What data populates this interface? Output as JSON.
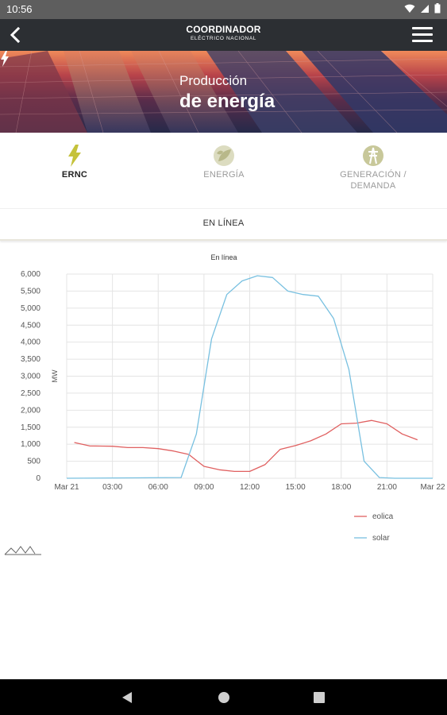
{
  "status_bar": {
    "time": "10:56",
    "icons": [
      "wifi-icon",
      "signal-icon",
      "battery-icon"
    ]
  },
  "app_bar": {
    "logo_main": "COORDINADOR",
    "logo_sub": "ELÉCTRICO NACIONAL"
  },
  "hero": {
    "line1": "Producción",
    "line2": "de energía"
  },
  "tabs": [
    {
      "label": "ERNC",
      "active": true,
      "color": "#c5c23a"
    },
    {
      "label": "ENERGÍA",
      "active": false,
      "color": "#c8c89a"
    },
    {
      "label": "GENERACIÓN /",
      "label2": "DEMANDA",
      "active": false,
      "color": "#c8c89a"
    }
  ],
  "subtab": {
    "label": "EN LÍNEA"
  },
  "chart_data": {
    "type": "line",
    "title": "En línea",
    "xlabel": "",
    "ylabel": "MW",
    "ylim": [
      0,
      6000
    ],
    "y_ticks": [
      "6,000",
      "5,500",
      "5,000",
      "4,500",
      "4,000",
      "3,500",
      "3,000",
      "2,500",
      "2,000",
      "1,500",
      "1,000",
      "500",
      "0"
    ],
    "x_ticks": [
      "Mar 21",
      "03:00",
      "06:00",
      "09:00",
      "12:00",
      "15:00",
      "18:00",
      "21:00",
      "Mar 22"
    ],
    "x_range_hours": [
      0,
      24
    ],
    "grid": true,
    "legend_position": "bottom-right",
    "series": [
      {
        "name": "eolica",
        "color": "#e06060",
        "x": [
          0.5,
          1.5,
          3,
          4,
          5,
          6,
          7,
          8,
          9,
          10,
          11,
          12,
          13,
          14,
          15,
          16,
          17,
          18,
          19,
          20,
          21,
          22,
          23
        ],
        "values": [
          1050,
          950,
          940,
          900,
          900,
          870,
          800,
          700,
          350,
          250,
          200,
          200,
          400,
          850,
          960,
          1100,
          1300,
          1600,
          1620,
          1700,
          1600,
          1300,
          1130
        ]
      },
      {
        "name": "solar",
        "color": "#78c0e0",
        "x": [
          0,
          7.5,
          8.5,
          9.5,
          10.5,
          11.5,
          12.5,
          13.5,
          14.5,
          15.5,
          16.5,
          17.5,
          18.5,
          19.5,
          20.5,
          21.5,
          24
        ],
        "values": [
          0,
          20,
          1300,
          4100,
          5400,
          5800,
          5950,
          5900,
          5500,
          5400,
          5350,
          4700,
          3200,
          500,
          20,
          0,
          0
        ]
      }
    ]
  }
}
